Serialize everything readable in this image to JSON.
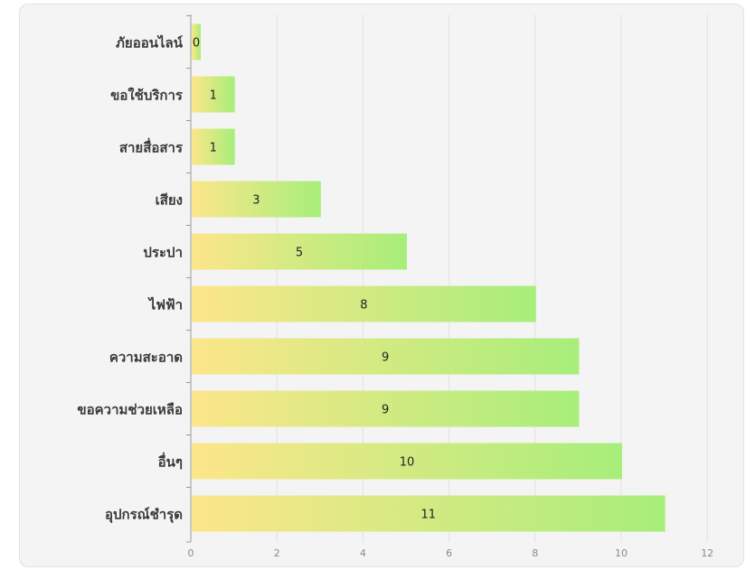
{
  "chart_data": {
    "type": "bar",
    "orientation": "horizontal",
    "categories": [
      "ภัยออนไลน์",
      "ขอใช้บริการ",
      "สายสื่อสาร",
      "เสียง",
      "ประปา",
      "ไฟฟ้า",
      "ความสะอาด",
      "ขอความช่วยเหลือ",
      "อื่นๆ",
      "อุปกรณ์ชำรุด"
    ],
    "values": [
      0,
      1,
      1,
      3,
      5,
      8,
      9,
      9,
      10,
      11
    ],
    "value_labels": [
      "0",
      "1",
      "1",
      "3",
      "5",
      "8",
      "9",
      "9",
      "10",
      "11"
    ],
    "xlim": [
      0,
      12
    ],
    "x_ticks": [
      "0",
      "2",
      "4",
      "6",
      "8",
      "10",
      "12"
    ],
    "grid": true,
    "legend": "none",
    "title": "",
    "xlabel": "",
    "ylabel": "",
    "colors": {
      "bar_start": "#fde68a",
      "bar_end": "#a7ee7a",
      "grid": "#e2e2e2",
      "axis": "#9a9a9a"
    }
  }
}
